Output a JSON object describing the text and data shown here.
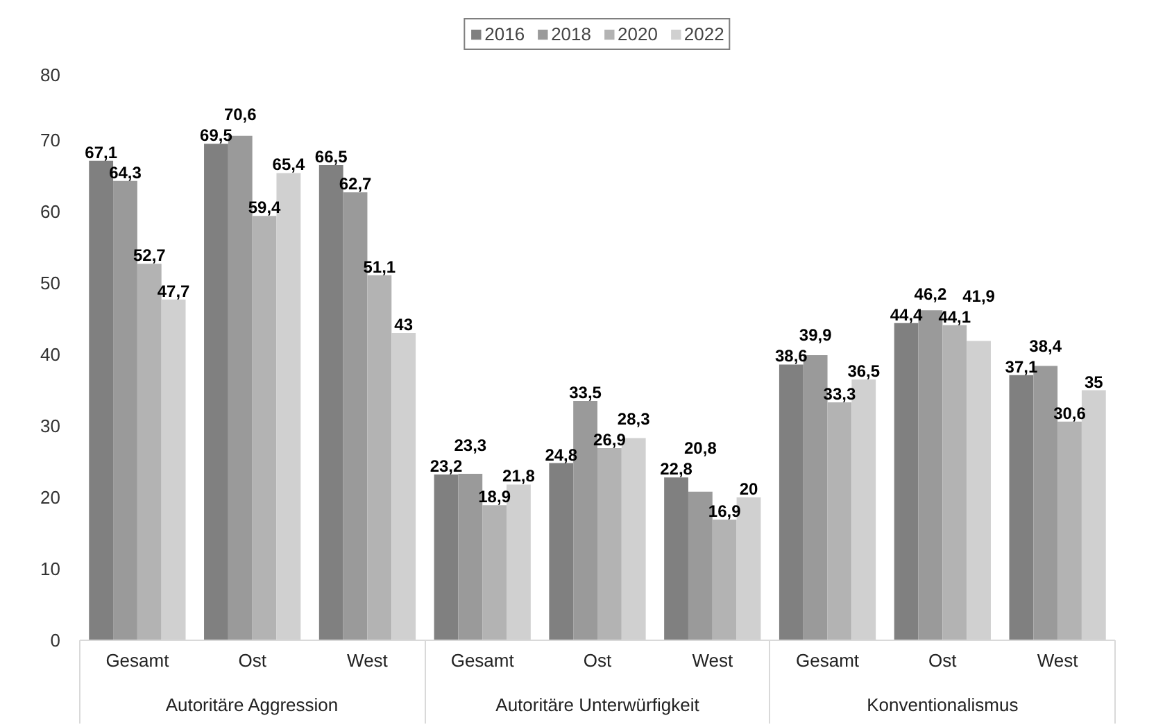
{
  "chart_data": {
    "type": "bar",
    "categories": [
      "Gesamt",
      "Ost",
      "West",
      "Gesamt",
      "Ost",
      "West",
      "Gesamt",
      "Ost",
      "West"
    ],
    "annotations": [
      "Autoritäre Aggression",
      "Autoritäre Unterwürfigkeit",
      "Konventionalismus"
    ],
    "series": [
      {
        "name": "2016",
        "color": "#808080",
        "values": [
          67.1,
          69.5,
          66.5,
          23.2,
          24.8,
          22.8,
          38.6,
          44.4,
          37.1
        ],
        "value_labels": [
          "67,1",
          "69,5",
          "66,5",
          "23,2",
          "24,8",
          "22,8",
          "38,6",
          "44,4",
          "37,1"
        ]
      },
      {
        "name": "2018",
        "color": "#9a9a9a",
        "values": [
          64.3,
          70.6,
          62.7,
          23.3,
          33.5,
          20.8,
          39.9,
          46.2,
          38.4
        ],
        "value_labels": [
          "64,3",
          "70,6",
          "62,7",
          "23,3",
          "33,5",
          "20,8",
          "39,9",
          "46,2",
          "38,4"
        ]
      },
      {
        "name": "2020",
        "color": "#b3b3b3",
        "values": [
          52.7,
          59.4,
          51.1,
          18.9,
          26.9,
          16.9,
          33.3,
          44.1,
          30.6
        ],
        "value_labels": [
          "52,7",
          "59,4",
          "51,1",
          "18,9",
          "26,9",
          "16,9",
          "33,3",
          "44,1",
          "30,6"
        ]
      },
      {
        "name": "2022",
        "color": "#d0d0d0",
        "values": [
          47.7,
          65.4,
          43,
          21.8,
          28.3,
          20,
          36.5,
          41.9,
          35
        ],
        "value_labels": [
          "47,7",
          "65,4",
          "43",
          "21,8",
          "28,3",
          "20",
          "36,5",
          "41,9",
          "35"
        ]
      }
    ],
    "ylim": [
      0,
      80
    ],
    "yticks": [
      0,
      10,
      20,
      30,
      40,
      50,
      60,
      70,
      80
    ],
    "grid": false,
    "legend": "top"
  }
}
